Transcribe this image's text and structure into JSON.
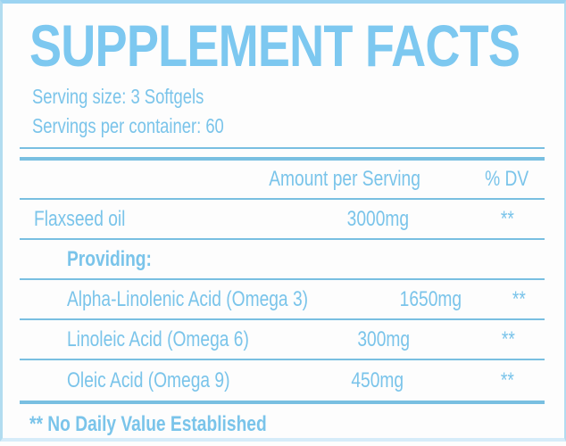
{
  "panel": {
    "title": "SUPPLEMENT FACTS",
    "serving_size": "Serving size: 3 Softgels",
    "servings_per_container": "Servings per container: 60",
    "footnote": "** No Daily Value Established",
    "colors": {
      "text_blue": "#7ac4ea",
      "title_blue": "#7dc8f0",
      "line_blue": "#79bfe1",
      "border_blue": "#b2dcf0"
    }
  },
  "table": {
    "headers": {
      "amount": "Amount per Serving",
      "dv": "% DV"
    },
    "rows": [
      {
        "name": "Flaxseed oil",
        "amount": "3000mg",
        "dv": "**",
        "indent": false,
        "bold": false
      },
      {
        "name": "Providing:",
        "amount": "",
        "dv": "",
        "indent": true,
        "bold": true
      },
      {
        "name": "Alpha-Linolenic Acid (Omega 3)",
        "amount": "1650mg",
        "dv": "**",
        "indent": true,
        "bold": false
      },
      {
        "name": "Linoleic Acid (Omega 6)",
        "amount": "300mg",
        "dv": "**",
        "indent": true,
        "bold": false
      },
      {
        "name": "Oleic Acid (Omega 9)",
        "amount": "450mg",
        "dv": "**",
        "indent": true,
        "bold": false
      }
    ]
  }
}
